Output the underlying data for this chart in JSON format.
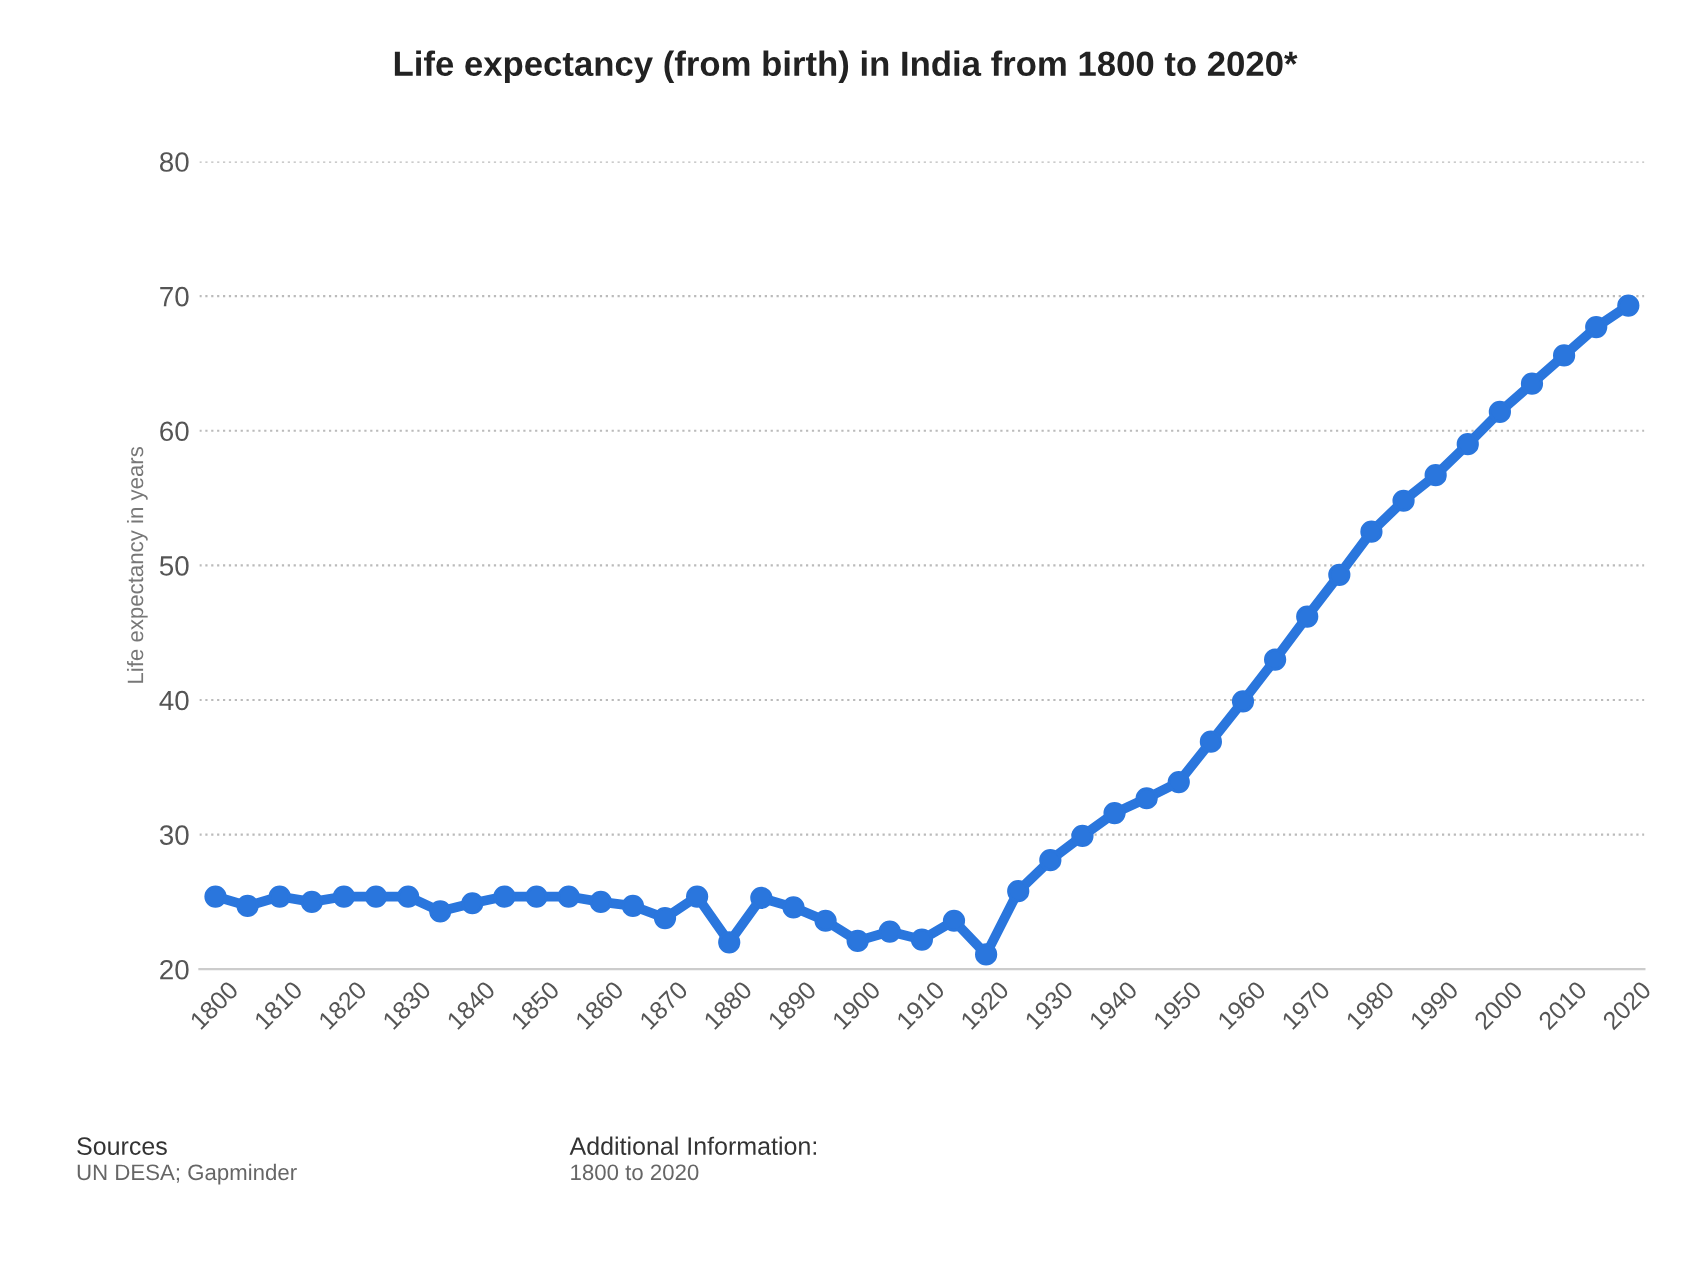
{
  "chart_data": {
    "type": "line",
    "title": "Life expectancy (from birth) in India from 1800 to 2020*",
    "ylabel": "Life expectancy in years",
    "x": [
      1800,
      1805,
      1810,
      1815,
      1820,
      1825,
      1830,
      1835,
      1840,
      1845,
      1850,
      1855,
      1860,
      1865,
      1870,
      1875,
      1880,
      1885,
      1890,
      1895,
      1900,
      1905,
      1910,
      1915,
      1920,
      1925,
      1930,
      1935,
      1940,
      1945,
      1950,
      1955,
      1960,
      1965,
      1970,
      1975,
      1980,
      1985,
      1990,
      1995,
      2000,
      2005,
      2010,
      2015,
      2020
    ],
    "series": [
      {
        "color": "#2a76dd",
        "values": [
          25.4,
          24.7,
          25.4,
          25.0,
          25.4,
          25.4,
          25.4,
          24.3,
          24.9,
          25.4,
          25.4,
          25.4,
          25.0,
          24.7,
          23.8,
          25.4,
          22.0,
          25.3,
          24.6,
          23.6,
          22.1,
          22.8,
          22.2,
          23.6,
          21.1,
          25.8,
          28.1,
          29.9,
          31.6,
          32.7,
          33.9,
          36.9,
          39.9,
          43.0,
          46.2,
          49.3,
          52.5,
          54.8,
          56.7,
          59.0,
          61.4,
          63.5,
          65.6,
          67.7,
          69.3
        ]
      }
    ],
    "xlim": [
      1797.5,
      2022.5
    ],
    "xticks": [
      1800,
      1810,
      1820,
      1830,
      1840,
      1850,
      1860,
      1870,
      1880,
      1890,
      1900,
      1910,
      1920,
      1930,
      1940,
      1950,
      1960,
      1970,
      1980,
      1990,
      2000,
      2010,
      2020
    ],
    "ylim": [
      20,
      80
    ],
    "yticks": [
      20,
      30,
      40,
      50,
      60,
      70,
      80
    ],
    "grid": "y",
    "legend": false,
    "marker": "circle",
    "line_style": "solid",
    "annotations": [
      "Sources",
      "UN DESA; Gapminder",
      "Additional Information:",
      "1800 to 2020"
    ]
  }
}
